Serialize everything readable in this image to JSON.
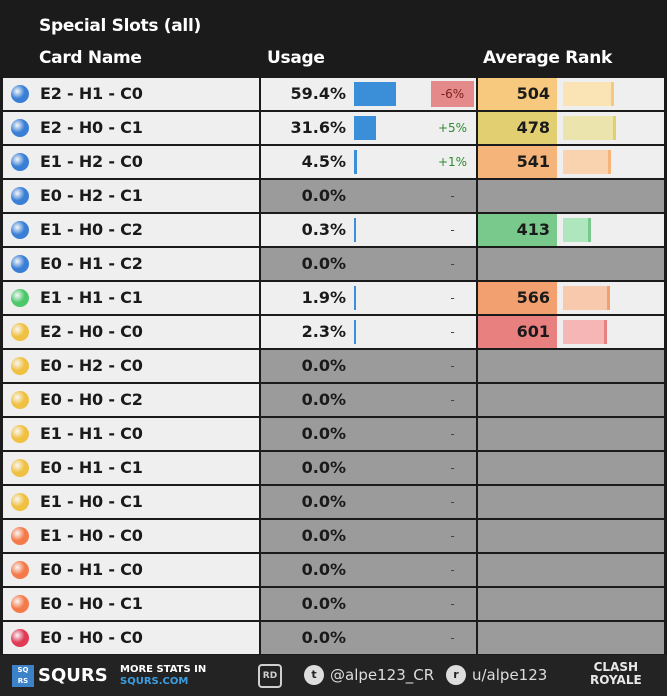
{
  "title": "Special Slots (all)",
  "headers": {
    "name": "Card Name",
    "usage": "Usage",
    "rank": "Average Rank"
  },
  "chart_data": {
    "type": "table",
    "columns": [
      "Card Name",
      "Usage",
      "Average Rank"
    ],
    "rows": [
      {
        "name": "E2 - H1 - C0",
        "dot": "#3a7fd6",
        "usage": "59.4%",
        "usage_val": 59.4,
        "change": "-6%",
        "change_dir": "down",
        "rank": "504",
        "rank_color": "#f7c97e",
        "rank_bar_color": "#fae3b4",
        "rank_fill": 0.85
      },
      {
        "name": "E2 - H0 - C1",
        "dot": "#3a7fd6",
        "usage": "31.6%",
        "usage_val": 31.6,
        "change": "+5%",
        "change_dir": "up",
        "rank": "478",
        "rank_color": "#e2cf72",
        "rank_bar_color": "#ece4ad",
        "rank_fill": 0.88
      },
      {
        "name": "E1 - H2 - C0",
        "dot": "#3a7fd6",
        "usage": "4.5%",
        "usage_val": 4.5,
        "change": "+1%",
        "change_dir": "up",
        "rank": "541",
        "rank_color": "#f5b57a",
        "rank_bar_color": "#f9d2b0",
        "rank_fill": 0.8
      },
      {
        "name": "E0 - H2 - C1",
        "dot": "#3a7fd6",
        "usage": "0.0%",
        "usage_val": 0,
        "change": "-",
        "change_dir": "none",
        "rank": "",
        "rank_color": "",
        "rank_bar_color": "",
        "rank_fill": 0
      },
      {
        "name": "E1 - H0 - C2",
        "dot": "#3a7fd6",
        "usage": "0.3%",
        "usage_val": 0.3,
        "change": "-",
        "change_dir": "none",
        "rank": "413",
        "rank_color": "#7ac98c",
        "rank_bar_color": "#aee6bd",
        "rank_fill": 0.47
      },
      {
        "name": "E0 - H1 - C2",
        "dot": "#3a7fd6",
        "usage": "0.0%",
        "usage_val": 0,
        "change": "-",
        "change_dir": "none",
        "rank": "",
        "rank_color": "",
        "rank_bar_color": "",
        "rank_fill": 0
      },
      {
        "name": "E1 - H1 - C1",
        "dot": "#4cc76a",
        "usage": "1.9%",
        "usage_val": 1.9,
        "change": "-",
        "change_dir": "none",
        "rank": "566",
        "rank_color": "#f2a070",
        "rank_bar_color": "#f8c9ad",
        "rank_fill": 0.78
      },
      {
        "name": "E2 - H0 - C0",
        "dot": "#f0c040",
        "usage": "2.3%",
        "usage_val": 2.3,
        "change": "-",
        "change_dir": "none",
        "rank": "601",
        "rank_color": "#e98080",
        "rank_bar_color": "#f7b6b6",
        "rank_fill": 0.74
      },
      {
        "name": "E0 - H2 - C0",
        "dot": "#f0c040",
        "usage": "0.0%",
        "usage_val": 0,
        "change": "-",
        "change_dir": "none",
        "rank": "",
        "rank_color": "",
        "rank_bar_color": "",
        "rank_fill": 0
      },
      {
        "name": "E0 - H0 - C2",
        "dot": "#f0c040",
        "usage": "0.0%",
        "usage_val": 0,
        "change": "-",
        "change_dir": "none",
        "rank": "",
        "rank_color": "",
        "rank_bar_color": "",
        "rank_fill": 0
      },
      {
        "name": "E1 - H1 - C0",
        "dot": "#f0c040",
        "usage": "0.0%",
        "usage_val": 0,
        "change": "-",
        "change_dir": "none",
        "rank": "",
        "rank_color": "",
        "rank_bar_color": "",
        "rank_fill": 0
      },
      {
        "name": "E0 - H1 - C1",
        "dot": "#f0c040",
        "usage": "0.0%",
        "usage_val": 0,
        "change": "-",
        "change_dir": "none",
        "rank": "",
        "rank_color": "",
        "rank_bar_color": "",
        "rank_fill": 0
      },
      {
        "name": "E1 - H0 - C1",
        "dot": "#f0c040",
        "usage": "0.0%",
        "usage_val": 0,
        "change": "-",
        "change_dir": "none",
        "rank": "",
        "rank_color": "",
        "rank_bar_color": "",
        "rank_fill": 0
      },
      {
        "name": "E1 - H0 - C0",
        "dot": "#f57a4a",
        "usage": "0.0%",
        "usage_val": 0,
        "change": "-",
        "change_dir": "none",
        "rank": "",
        "rank_color": "",
        "rank_bar_color": "",
        "rank_fill": 0
      },
      {
        "name": "E0 - H1 - C0",
        "dot": "#f57a4a",
        "usage": "0.0%",
        "usage_val": 0,
        "change": "-",
        "change_dir": "none",
        "rank": "",
        "rank_color": "",
        "rank_bar_color": "",
        "rank_fill": 0
      },
      {
        "name": "E0 - H0 - C1",
        "dot": "#f57a4a",
        "usage": "0.0%",
        "usage_val": 0,
        "change": "-",
        "change_dir": "none",
        "rank": "",
        "rank_color": "",
        "rank_bar_color": "",
        "rank_fill": 0
      },
      {
        "name": "E0 - H0 - C0",
        "dot": "#e03a55",
        "usage": "0.0%",
        "usage_val": 0,
        "change": "-",
        "change_dir": "none",
        "rank": "",
        "rank_color": "",
        "rank_bar_color": "",
        "rank_fill": 0
      }
    ]
  },
  "footer": {
    "brand": "SQURS",
    "logo_text": "SQ RS",
    "more_line1": "MORE STATS IN",
    "more_line2": "SQURS.COM",
    "rd": "RD",
    "twitter_icon": "t",
    "twitter": "@alpe123_CR",
    "reddit_icon": "r",
    "reddit": "u/alpe123",
    "cr_line1": "CLASH",
    "cr_line2": "ROYALE"
  }
}
